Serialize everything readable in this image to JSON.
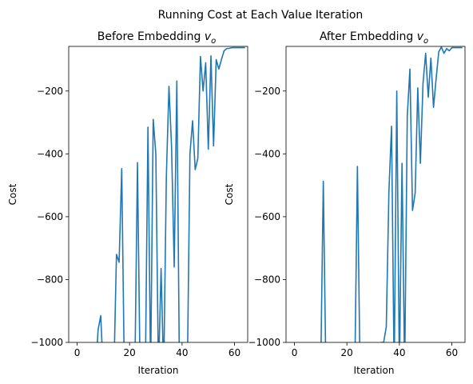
{
  "figure": {
    "suptitle": "Running Cost at Each Value Iteration",
    "line_color": "#1f77b4"
  },
  "chart_data": [
    {
      "type": "line",
      "title": "Before Embedding v_o",
      "title_prefix": "Before Embedding ",
      "title_var": "v",
      "title_sub": "o",
      "xlabel": "Iteration",
      "ylabel": "Cost",
      "xlim": [
        -3.2,
        65
      ],
      "ylim": [
        -1000,
        -58
      ],
      "xticks": [
        0,
        20,
        40,
        60
      ],
      "yticks": [
        -200,
        -400,
        -600,
        -800,
        -1000
      ],
      "grid": false,
      "series": [
        {
          "x": [
            7,
            8,
            9,
            10,
            11,
            12,
            13,
            14,
            15,
            16,
            17,
            18,
            19,
            20,
            21,
            22,
            23,
            24,
            25,
            26,
            27,
            28,
            29,
            30,
            31,
            32,
            33,
            34,
            35,
            36,
            37,
            38,
            39,
            40,
            41,
            42,
            43,
            44,
            45,
            46,
            47,
            48,
            49,
            50,
            51,
            52,
            53,
            54,
            55,
            56,
            57,
            58,
            59,
            60,
            61,
            62,
            63,
            64
          ],
          "y": [
            -1100,
            -960,
            -915,
            -1100,
            -1100,
            -1100,
            -1100,
            -1100,
            -720,
            -745,
            -447,
            -1100,
            -1100,
            -1100,
            -1100,
            -1100,
            -428,
            -1100,
            -1100,
            -1100,
            -315,
            -1100,
            -290,
            -400,
            -1100,
            -765,
            -1100,
            -475,
            -185,
            -380,
            -760,
            -168,
            -1100,
            -1100,
            -1100,
            -1100,
            -400,
            -295,
            -450,
            -415,
            -90,
            -200,
            -110,
            -385,
            -88,
            -375,
            -100,
            -130,
            -100,
            -72,
            -65,
            -64,
            -62,
            -62,
            -62,
            -62,
            -62,
            -62
          ]
        }
      ]
    },
    {
      "type": "line",
      "title": "After Embedding v_o",
      "title_prefix": "After Embedding ",
      "title_var": "v",
      "title_sub": "o",
      "xlabel": "Iteration",
      "ylabel": "Cost",
      "xlim": [
        -3.2,
        65
      ],
      "ylim": [
        -1000,
        -58
      ],
      "xticks": [
        0,
        20,
        40,
        60
      ],
      "yticks": [
        -200,
        -400,
        -600,
        -800,
        -1000
      ],
      "grid": false,
      "series": [
        {
          "x": [
            10,
            11,
            12,
            23,
            24,
            25,
            33,
            34,
            35,
            36,
            37,
            38,
            39,
            40,
            41,
            42,
            43,
            44,
            45,
            46,
            47,
            48,
            49,
            50,
            51,
            52,
            53,
            54,
            55,
            56,
            57,
            58,
            59,
            60,
            61,
            62,
            63,
            64
          ],
          "y": [
            -1100,
            -487,
            -1100,
            -1100,
            -440,
            -1100,
            -1000,
            -1000,
            -950,
            -520,
            -312,
            -1100,
            -200,
            -1100,
            -430,
            -1100,
            -280,
            -130,
            -580,
            -525,
            -190,
            -430,
            -175,
            -80,
            -220,
            -95,
            -252,
            -160,
            -75,
            -60,
            -80,
            -65,
            -72,
            -62,
            -62,
            -62,
            -62,
            -62
          ]
        }
      ]
    }
  ]
}
